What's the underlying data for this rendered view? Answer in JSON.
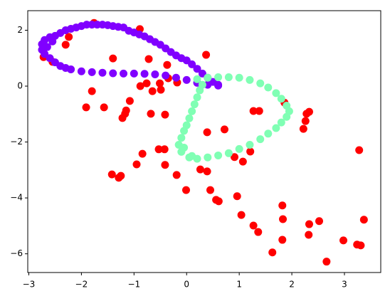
{
  "chart_data": {
    "type": "scatter",
    "xlim": [
      -3.02,
      3.69
    ],
    "ylim": [
      -6.67,
      2.7
    ],
    "xticks": [
      {
        "value": -3,
        "label": "−3"
      },
      {
        "value": -2,
        "label": "−2"
      },
      {
        "value": -1,
        "label": "−1"
      },
      0,
      1,
      2,
      3
    ],
    "yticks": [
      {
        "value": -6,
        "label": "−6"
      },
      {
        "value": -4,
        "label": "−4"
      },
      {
        "value": -2,
        "label": "−2"
      },
      0,
      2
    ],
    "series": [
      {
        "color": "#ff0000",
        "x": [
          -2.72,
          -2.55,
          -2.3,
          -2.24,
          -1.76,
          -1.8,
          -1.91,
          -1.57,
          -1.4,
          -0.89,
          -0.72,
          -0.37,
          0.37,
          -0.88,
          -0.76,
          -0.65,
          -0.51,
          -0.49,
          -0.35,
          -1.08,
          -1.15,
          -1.17,
          -1.22,
          -0.68,
          -0.41,
          0.39,
          0.72,
          -0.84,
          -0.53,
          -0.42,
          -0.95,
          -0.41,
          -1.42,
          -1.29,
          -1.25,
          -0.19,
          -0.01,
          0.26,
          0.39,
          0.45,
          0.56,
          0.61,
          0.96,
          1.04,
          1.27,
          1.36,
          1.63,
          1.82,
          1.83,
          1.82,
          2.33,
          2.32,
          2.52,
          2.66,
          2.98,
          3.24,
          3.31,
          3.28,
          3.37,
          2.22,
          2.26,
          2.28,
          2.33,
          1.27,
          1.38,
          1.86,
          0.91,
          1.07,
          1.21,
          -0.18
        ],
        "values": [
          1.04,
          0.87,
          1.48,
          1.76,
          2.26,
          -0.18,
          -0.76,
          -0.76,
          0.99,
          2.04,
          0.97,
          0.76,
          1.12,
          0,
          0.1,
          -0.18,
          0.1,
          -0.13,
          0.28,
          -0.53,
          -0.87,
          -0.99,
          -1.14,
          -0.99,
          -1.02,
          -1.65,
          -1.55,
          -2.42,
          -2.26,
          -2.26,
          -2.8,
          -2.82,
          -3.16,
          -3.28,
          -3.21,
          -3.18,
          -3.72,
          -2.98,
          -3.05,
          -3.72,
          -4.07,
          -4.12,
          -3.94,
          -4.61,
          -4.99,
          -5.22,
          -5.95,
          -4.27,
          -4.76,
          -5.5,
          -4.94,
          -5.32,
          -4.83,
          -6.28,
          -5.52,
          -5.67,
          -5.7,
          -2.29,
          -4.78,
          -1.53,
          -1.25,
          -0.99,
          -0.92,
          -0.89,
          -0.89,
          -0.59,
          -2.54,
          -2.7,
          -2.34,
          0.13
        ]
      },
      {
        "color": "#8000ff",
        "x": [
          -2.75,
          -2.7,
          -2.6,
          -2.5,
          -2.4,
          -2.3,
          -2.2,
          -2.1,
          -2.0,
          -1.9,
          -1.8,
          -1.7,
          -1.6,
          -1.5,
          -1.4,
          -1.3,
          -1.2,
          -1.1,
          -1.0,
          -0.9,
          -0.8,
          -0.7,
          -0.6,
          -0.5,
          -0.4,
          -0.3,
          -0.2,
          -0.1,
          0.0,
          0.1,
          0.2,
          0.3,
          0.4,
          0.5,
          0.6,
          -2.75,
          -2.7,
          -2.6,
          -2.5,
          -2.4,
          -2.3,
          -2.2,
          -2.0,
          -1.8,
          -1.6,
          -1.4,
          -1.2,
          -1.0,
          -0.8,
          -0.6,
          -0.4,
          -0.2,
          0.0,
          0.2,
          0.4,
          0.6,
          -2.65,
          -2.55
        ],
        "values": [
          1.5,
          1.65,
          1.75,
          1.8,
          1.9,
          2.0,
          2.05,
          2.1,
          2.15,
          2.2,
          2.2,
          2.2,
          2.2,
          2.18,
          2.15,
          2.12,
          2.1,
          1.98,
          1.92,
          1.85,
          1.78,
          1.68,
          1.58,
          1.48,
          1.35,
          1.22,
          1.1,
          1.0,
          0.92,
          0.78,
          0.62,
          0.45,
          0.3,
          0.15,
          0.05,
          1.3,
          1.15,
          1.0,
          0.85,
          0.72,
          0.65,
          0.6,
          0.53,
          0.5,
          0.48,
          0.46,
          0.45,
          0.45,
          0.44,
          0.42,
          0.38,
          0.3,
          0.22,
          0.12,
          0.05,
          0.02,
          1.4,
          1.6
        ]
      },
      {
        "color": "#80ffb4",
        "x": [
          0.2,
          0.4,
          0.6,
          0.8,
          1.0,
          1.2,
          1.4,
          1.55,
          1.7,
          1.8,
          1.9,
          1.95,
          1.9,
          1.8,
          1.7,
          1.55,
          1.4,
          1.2,
          1.0,
          0.8,
          0.6,
          0.4,
          0.2,
          0.05,
          -0.1,
          -0.15,
          -0.1,
          -0.05,
          0.0,
          0.05,
          0.1,
          0.15,
          0.2,
          0.25,
          0.3,
          -0.05,
          0.1
        ],
        "values": [
          0.25,
          0.3,
          0.32,
          0.32,
          0.3,
          0.22,
          0.1,
          -0.05,
          -0.25,
          -0.45,
          -0.7,
          -0.9,
          -1.1,
          -1.3,
          -1.5,
          -1.7,
          -1.9,
          -2.1,
          -2.25,
          -2.4,
          -2.48,
          -2.55,
          -2.6,
          -2.55,
          -2.35,
          -2.1,
          -1.85,
          -1.6,
          -1.4,
          -1.15,
          -0.9,
          -0.65,
          -0.4,
          -0.15,
          0.05,
          -2.2,
          -2.5
        ]
      }
    ]
  }
}
